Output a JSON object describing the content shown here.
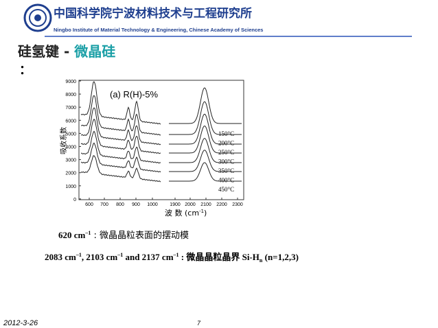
{
  "header": {
    "title": "中国科学院宁波材料技术与工程研究所",
    "subtitle": "Ningbo Institute of Material Technology & Engineering, Chinese Academy of Sciences"
  },
  "heading": {
    "part1": "硅氢键 - ",
    "part2": "微晶硅",
    "colon": "："
  },
  "figure": {
    "panel_label": "(a)  R(H)-5%",
    "y_label": "吸收系数",
    "x_label": "波 数 (cm",
    "x_label_sup": "-1",
    "x_label_end": ")",
    "y_ticks": [
      "9000",
      "8000",
      "7000",
      "6000",
      "5000",
      "4000",
      "3000",
      "2000",
      "1000",
      "0"
    ],
    "x_ticks": [
      "600",
      "700",
      "800",
      "900",
      "1000",
      "1900",
      "2000",
      "2100",
      "2200",
      "2300"
    ],
    "curve_labels": [
      "150°C",
      "200°C",
      "250°C",
      "300°C",
      "350°C",
      "400°C",
      "450°C"
    ]
  },
  "notes": [
    [
      "620 cm",
      "–1",
      " : 微晶晶粒表面的摆动模"
    ],
    [
      "2083 cm",
      "–1",
      ", 2103 cm",
      "–1",
      " and 2137 cm",
      "–1",
      " : 微晶晶粒晶界  Si-H",
      "n",
      " (n=1,2,3)"
    ]
  ],
  "footer": {
    "date": "2012-3-26",
    "page": "7"
  }
}
